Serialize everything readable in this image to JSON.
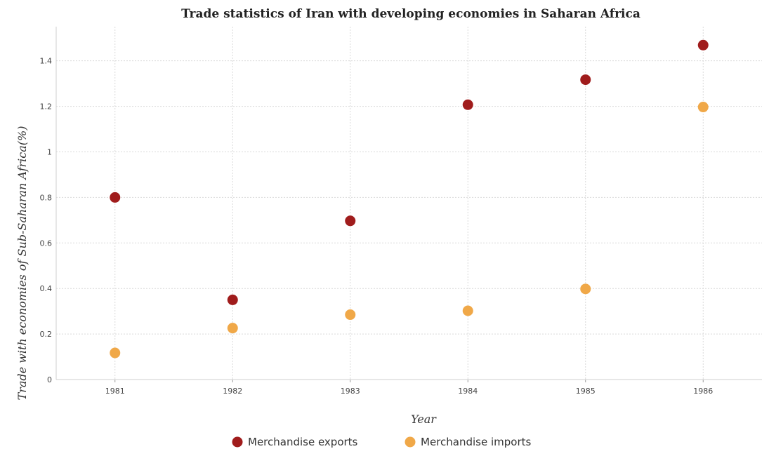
{
  "chart_data": {
    "type": "scatter",
    "title": "Trade statistics of Iran with developing economies in Saharan Africa",
    "xlabel": "Year",
    "ylabel": "Trade with economies of Sub-Saharan Africa(%)",
    "categories": [
      "1981",
      "1982",
      "1983",
      "1984",
      "1985",
      "1986"
    ],
    "ylim": [
      0,
      1.55
    ],
    "yticks": [
      0,
      0.2,
      0.4,
      0.6,
      0.8,
      1,
      1.2,
      1.4
    ],
    "ytick_labels": [
      "0",
      "0.2",
      "0.4",
      "0.6",
      "0.8",
      "1",
      "1.2",
      "1.4"
    ],
    "grid": true,
    "legend_position": "bottom",
    "series": [
      {
        "name": "Merchandise exports",
        "color": "#a01c1c",
        "values": [
          0.8,
          0.35,
          0.697,
          1.207,
          1.317,
          1.469
        ]
      },
      {
        "name": "Merchandise imports",
        "color": "#f0a848",
        "values": [
          0.117,
          0.226,
          0.285,
          0.302,
          0.398,
          1.197
        ]
      }
    ]
  }
}
